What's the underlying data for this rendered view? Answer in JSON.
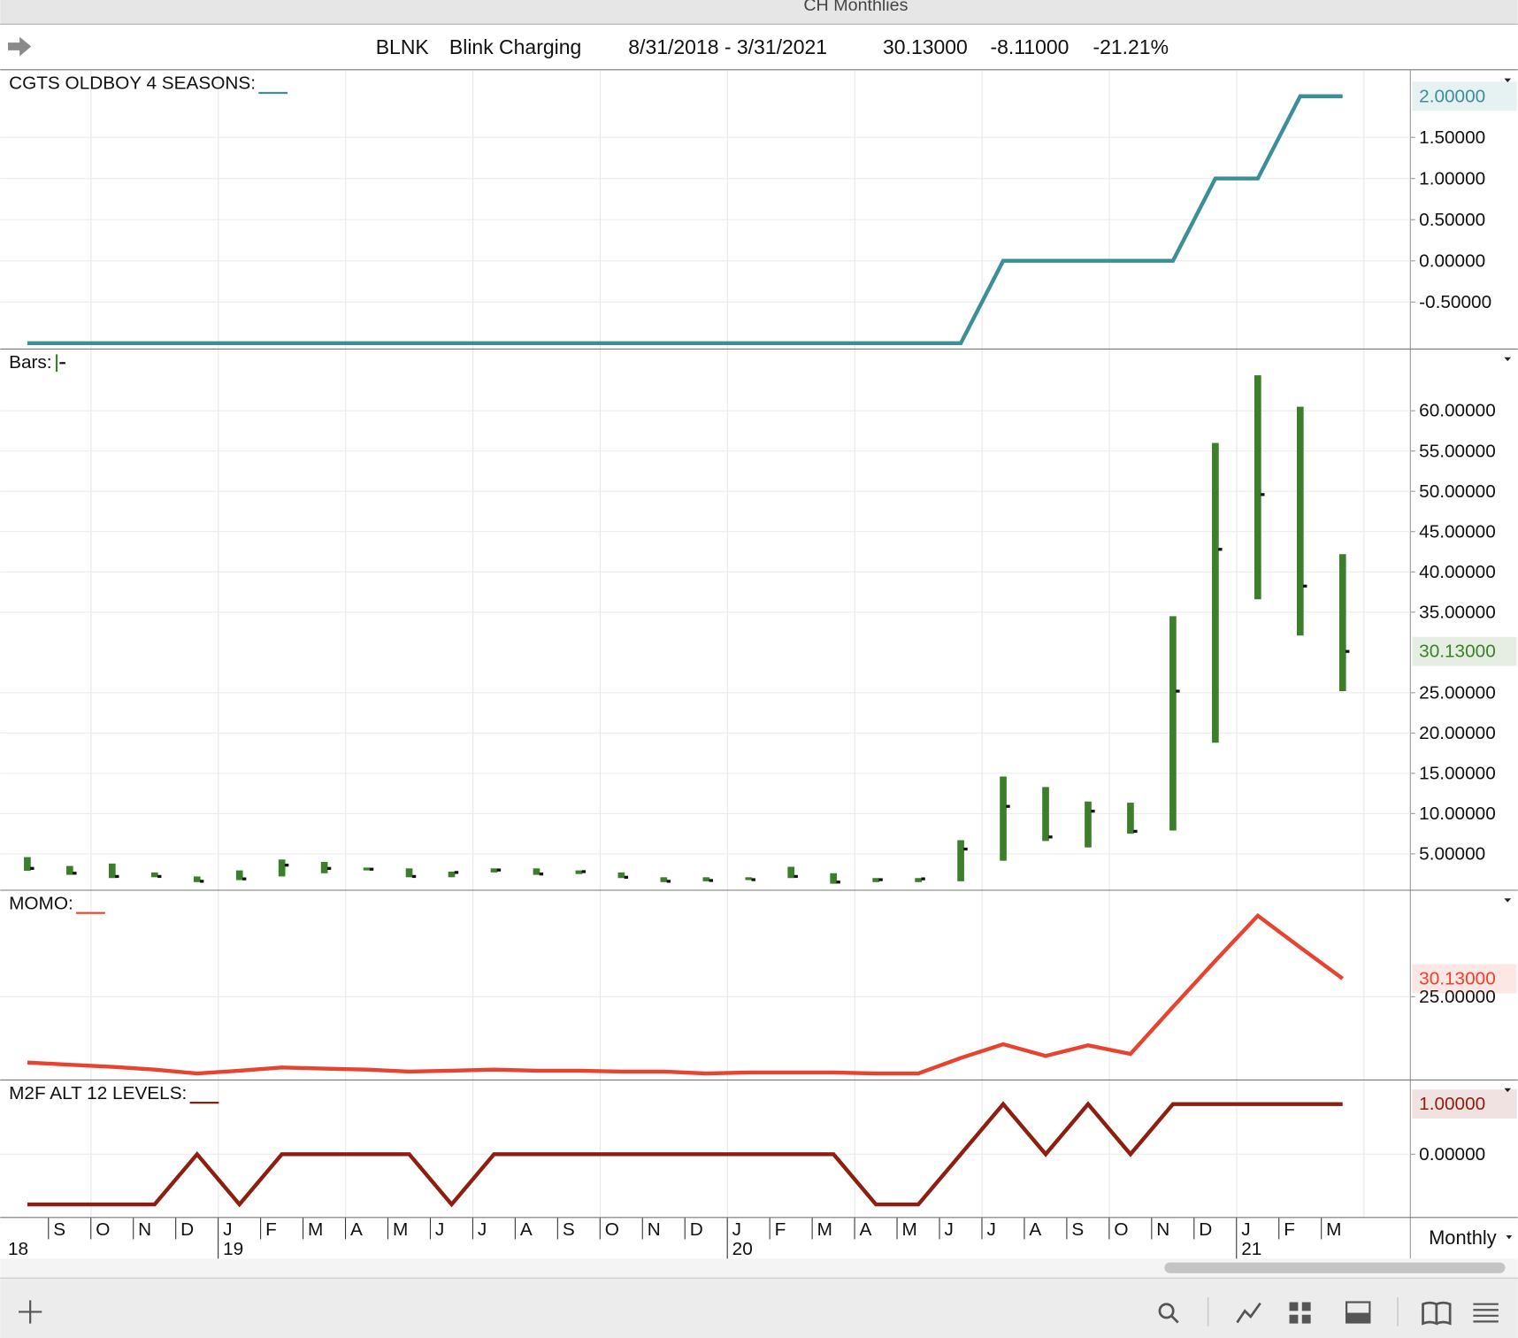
{
  "window_title": "CH Monthlies",
  "header": {
    "symbol": "BLNK",
    "name": "Blink Charging",
    "date_range": "8/31/2018 - 3/31/2021",
    "last": "30.13000",
    "change": "-8.11000",
    "change_pct": "-21.21%"
  },
  "x_axis": {
    "categories": [
      null,
      "S",
      "O",
      "N",
      "D",
      "J",
      "F",
      "M",
      "A",
      "M",
      "J",
      "J",
      "A",
      "S",
      "O",
      "N",
      "D",
      "J",
      "F",
      "M",
      "A",
      "M",
      "J",
      "J",
      "A",
      "S",
      "O",
      "N",
      "D",
      "J",
      "F",
      "M"
    ],
    "years": [
      "18",
      "19",
      "20",
      "21"
    ]
  },
  "period": "Monthly",
  "chart_data": [
    {
      "type": "line",
      "title": "CGTS OLDBOY 4 SEASONS:",
      "color": "#3d8f97",
      "values": [
        -1,
        -1,
        -1,
        -1,
        -1,
        -1,
        -1,
        -1,
        -1,
        -1,
        -1,
        -1,
        -1,
        -1,
        -1,
        -1,
        -1,
        -1,
        -1,
        -1,
        -1,
        -1,
        -1,
        0,
        0,
        0,
        0,
        0,
        1,
        1,
        2,
        2
      ],
      "ylim": [
        -1.065,
        2.31
      ],
      "yticks": [
        {
          "value": 1.5,
          "label": "1.50000"
        },
        {
          "value": 1,
          "label": "1.00000"
        },
        {
          "value": 0.5,
          "label": "0.50000"
        },
        {
          "value": 0,
          "label": "0.00000"
        },
        {
          "value": -0.5,
          "label": "-0.50000"
        }
      ],
      "last_label": "2.00000",
      "grid": true
    },
    {
      "type": "ohlc",
      "title": "Bars:",
      "color": "#3b7f2a",
      "high": [
        4.6,
        3.5,
        3.8,
        2.7,
        2.2,
        2.95,
        4.3,
        4.0,
        3.3,
        3.2,
        2.8,
        3.2,
        3.2,
        2.95,
        2.7,
        2.1,
        2.1,
        2.1,
        3.4,
        2.6,
        2.0,
        2.0,
        6.7,
        14.6,
        13.3,
        11.5,
        11.35,
        34.5,
        56.0,
        64.4,
        60.5,
        42.2
      ],
      "low": [
        2.9,
        2.4,
        2.0,
        2.1,
        1.5,
        1.75,
        2.2,
        2.6,
        2.95,
        2.1,
        2.1,
        2.7,
        2.4,
        2.5,
        2.0,
        1.5,
        1.6,
        1.75,
        2.0,
        1.3,
        1.5,
        1.5,
        1.6,
        4.15,
        6.6,
        5.8,
        7.5,
        7.9,
        18.8,
        36.6,
        32.1,
        25.2
      ],
      "close": [
        3.2,
        2.6,
        2.2,
        2.2,
        1.6,
        1.9,
        3.6,
        3.2,
        3.1,
        2.2,
        2.7,
        3.0,
        2.5,
        2.8,
        2.1,
        1.6,
        1.7,
        1.8,
        2.2,
        1.5,
        1.8,
        1.9,
        5.6,
        10.9,
        7.1,
        10.3,
        7.8,
        25.2,
        42.8,
        49.6,
        38.24,
        30.13
      ],
      "ylim": [
        0.55,
        67.6
      ],
      "yticks": [
        {
          "value": 5,
          "label": "5.00000"
        },
        {
          "value": 10,
          "label": "10.00000"
        },
        {
          "value": 15,
          "label": "15.00000"
        },
        {
          "value": 20,
          "label": "20.00000"
        },
        {
          "value": 25,
          "label": "25.00000"
        },
        {
          "value": 35,
          "label": "35.00000"
        },
        {
          "value": 40,
          "label": "40.00000"
        },
        {
          "value": 45,
          "label": "45.00000"
        },
        {
          "value": 50,
          "label": "50.00000"
        },
        {
          "value": 55,
          "label": "55.00000"
        },
        {
          "value": 60,
          "label": "60.00000"
        }
      ],
      "last_label": "30.13000",
      "grid": true
    },
    {
      "type": "line",
      "title": "MOMO:",
      "color": "#e8432e",
      "values": [
        6.3,
        5.7,
        5.1,
        4.3,
        3.2,
        4.0,
        4.9,
        4.6,
        4.3,
        3.75,
        4.0,
        4.3,
        4.0,
        4.0,
        3.75,
        3.75,
        3.2,
        3.5,
        3.5,
        3.5,
        3.2,
        3.2,
        7.6,
        11.5,
        8.2,
        11.2,
        8.75,
        22.1,
        35.2,
        48.0,
        39.0,
        30.13
      ],
      "ylim": [
        1.5,
        55.1
      ],
      "yticks": [
        {
          "value": 25,
          "label": "25.00000"
        }
      ],
      "last_label": "30.13000",
      "grid": true
    },
    {
      "type": "line",
      "title": "M2F ALT 12 LEVELS:",
      "color": "#8e1f10",
      "values": [
        -1,
        -1,
        -1,
        -1,
        0,
        -1,
        0,
        0,
        0,
        0,
        -1,
        0,
        0,
        0,
        0,
        0,
        0,
        0,
        0,
        0,
        -1,
        -1,
        0,
        1,
        0,
        1,
        0,
        1,
        1,
        1,
        1,
        1
      ],
      "ylim": [
        -1.25,
        1.47
      ],
      "yticks": [
        {
          "value": 0,
          "label": "0.00000"
        }
      ],
      "last_label": "1.00000",
      "grid": true
    }
  ]
}
